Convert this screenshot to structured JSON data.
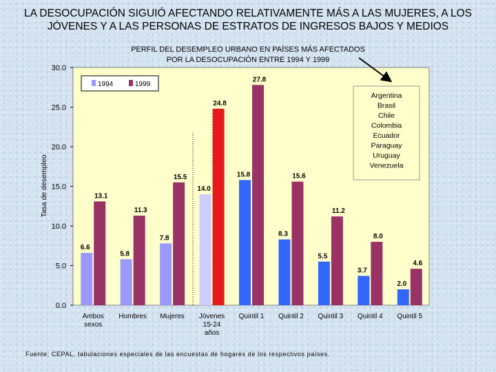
{
  "header": {
    "title_line1": "LA DESOCUPACIÓN SIGUIÓ AFECTANDO RELATIVAMENTE MÁS A LAS MUJERES, A LOS",
    "title_line2": "JÓVENES Y A LAS PERSONAS DE ESTRATOS DE INGRESOS BAJOS Y MEDIOS"
  },
  "chart_data": {
    "type": "bar",
    "subtitle_line1": "PERFIL DEL DESEMPLEO URBANO EN PAÍSES MÁS AFECTADOS",
    "subtitle_line2": "POR LA DESOCUPACIÓN ENTRE 1994 Y 1999",
    "ylabel": "Tasa de desempleo",
    "xlabel": "",
    "ylim": [
      0,
      30
    ],
    "yticks": [
      "0.0",
      "5.0",
      "10.0",
      "15.0",
      "20.0",
      "25.0",
      "30.0"
    ],
    "categories": [
      [
        "Ambos",
        "sexos"
      ],
      [
        "Hombres"
      ],
      [
        "Mujeres"
      ],
      [
        "Jóvenes",
        "15-24",
        "años"
      ],
      [
        "Quintil 1"
      ],
      [
        "Quintil 2"
      ],
      [
        "Quintil 3"
      ],
      [
        "Quintil 4"
      ],
      [
        "Quintil 5"
      ]
    ],
    "series": [
      {
        "name": "1994",
        "values": [
          6.6,
          5.8,
          7.8,
          14.0,
          15.8,
          8.3,
          5.5,
          3.7,
          2.0
        ],
        "color": "#9999ff",
        "highlight_color": "#ccccff",
        "quintile_color": "#3366ff"
      },
      {
        "name": "1999",
        "values": [
          13.1,
          11.3,
          15.5,
          24.8,
          27.8,
          15.6,
          11.2,
          8.0,
          4.6
        ],
        "color": "#993366",
        "highlight_color": "#ff3333"
      }
    ],
    "legend_position": "top-left",
    "grid": false,
    "plot_background": "#ffffcc",
    "annotation": {
      "countries": [
        "Argentina",
        "Brasil",
        "Chile",
        "Colombia",
        "Ecuador",
        "Paraguay",
        "Uruguay",
        "Venezuela"
      ]
    }
  },
  "footer": {
    "source": "Fuente: CEPAL, tabulaciones especiales de las encuestas de hogares de los respectivos países."
  }
}
